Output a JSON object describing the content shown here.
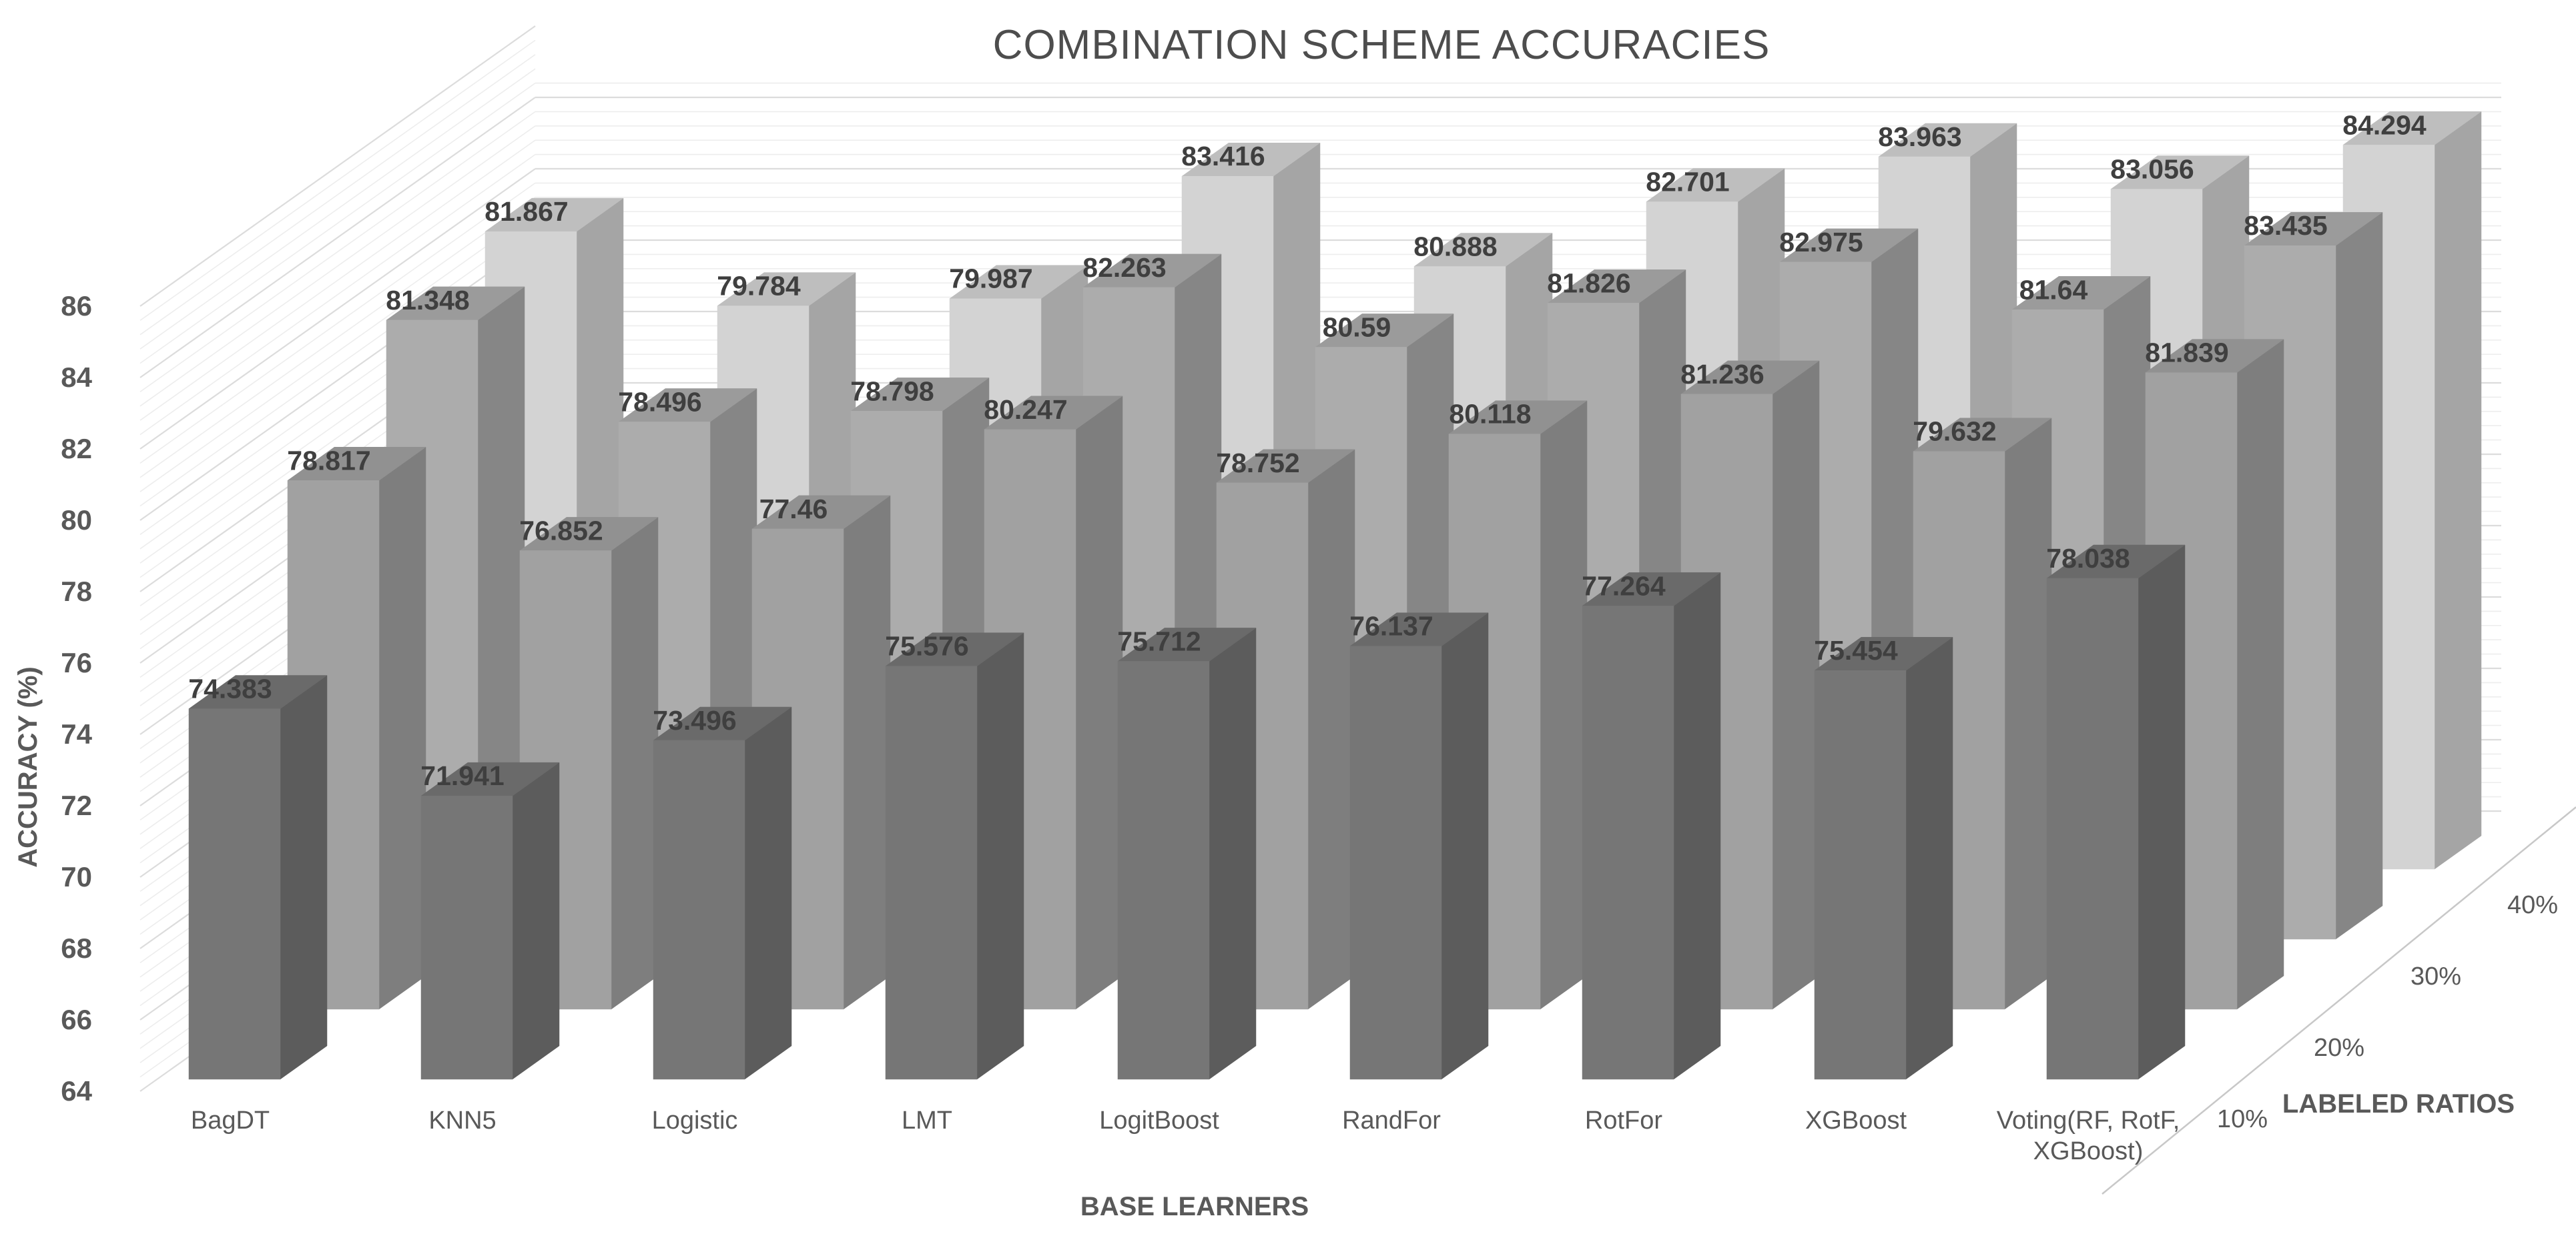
{
  "chart_data": {
    "type": "bar",
    "projection": "3d-column",
    "title": "COMBINATION SCHEME ACCURACIES",
    "xlabel": "BASE LEARNERS",
    "ylabel": "ACCURACY (%)",
    "zlabel": "LABELED RATIOS",
    "ylim": [
      64,
      86
    ],
    "ytick_step": 2,
    "grid": true,
    "legend_position": "none",
    "categories": [
      "BagDT",
      "KNN5",
      "Logistic",
      "LMT",
      "LogitBoost",
      "RandFor",
      "RotFor",
      "XGBoost",
      "Voting(RF, RotF, XGBoost)"
    ],
    "category_wrap_lines": {
      "8": [
        "Voting(RF, RotF,",
        "XGBoost)"
      ]
    },
    "series": [
      {
        "name": "10%",
        "color": "#767676",
        "values": [
          74.383,
          71.941,
          73.496,
          75.576,
          75.712,
          76.137,
          77.264,
          75.454,
          78.038
        ],
        "labels": [
          "74.383",
          "71.941",
          "73.496",
          "75.576",
          "75.712",
          "76.137",
          "77.264",
          "75.454",
          "78.038"
        ]
      },
      {
        "name": "20%",
        "color": "#a1a1a1",
        "values": [
          78.817,
          76.852,
          77.46,
          80.247,
          78.752,
          80.118,
          81.236,
          79.632,
          81.839
        ],
        "labels": [
          "78.817",
          "76.852",
          "77.46",
          "80.247",
          "78.752",
          "80.118",
          "81.236",
          "79.632",
          "81.839"
        ]
      },
      {
        "name": "30%",
        "color": "#acacac",
        "values": [
          81.348,
          78.496,
          78.798,
          82.263,
          80.59,
          81.826,
          82.975,
          81.64,
          83.435
        ],
        "labels": [
          "81.348",
          "78.496",
          "78.798",
          "82.263",
          "80.59",
          "81.826",
          "82.975",
          "81.64",
          "83.435"
        ]
      },
      {
        "name": "40%",
        "color": "#d3d3d3",
        "values": [
          81.867,
          79.784,
          79.987,
          83.416,
          80.888,
          82.701,
          83.963,
          83.056,
          84.294
        ],
        "labels": [
          "81.867",
          "79.784",
          "79.987",
          "83.416",
          "80.888",
          "82.701",
          "83.963",
          "83.056",
          "84.294"
        ]
      }
    ],
    "title_color": "#4d4d4d",
    "value_label_color": "#3f3f3f",
    "axis_text_color": "#595959",
    "gridline_minor_color": "#ededed",
    "gridline_major_color": "#dcdcdc",
    "floor_edge_color": "#c8c8c8"
  }
}
